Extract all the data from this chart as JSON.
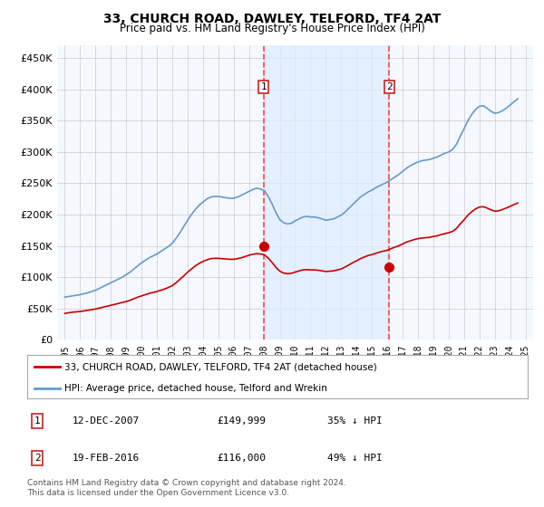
{
  "title": "33, CHURCH ROAD, DAWLEY, TELFORD, TF4 2AT",
  "subtitle": "Price paid vs. HM Land Registry's House Price Index (HPI)",
  "xlabel": "",
  "ylabel": "",
  "ylim": [
    0,
    470000
  ],
  "yticks": [
    0,
    50000,
    100000,
    150000,
    200000,
    250000,
    300000,
    350000,
    400000,
    450000
  ],
  "ytick_labels": [
    "£0",
    "£50K",
    "£100K",
    "£150K",
    "£200K",
    "£250K",
    "£300K",
    "£350K",
    "£400K",
    "£450K"
  ],
  "xlim_start": 1994.5,
  "xlim_end": 2025.5,
  "xticks": [
    1995,
    1996,
    1997,
    1998,
    1999,
    2000,
    2001,
    2002,
    2003,
    2004,
    2005,
    2006,
    2007,
    2008,
    2009,
    2010,
    2011,
    2012,
    2013,
    2014,
    2015,
    2016,
    2017,
    2018,
    2019,
    2020,
    2021,
    2022,
    2023,
    2024,
    2025
  ],
  "background_color": "#ffffff",
  "plot_bg_color": "#f5f8ff",
  "grid_color": "#cccccc",
  "hpi_color": "#6699cc",
  "price_color": "#cc0000",
  "shade_color": "#ddeeff",
  "marker_color": "#cc0000",
  "sale1_x": 2007.95,
  "sale1_y": 149999,
  "sale1_label": "1",
  "sale2_x": 2016.13,
  "sale2_y": 116000,
  "sale2_label": "2",
  "vline_color": "#ff4444",
  "vline_style": "--",
  "legend_line1": "33, CHURCH ROAD, DAWLEY, TELFORD, TF4 2AT (detached house)",
  "legend_line2": "HPI: Average price, detached house, Telford and Wrekin",
  "annotation1_date": "12-DEC-2007",
  "annotation1_price": "£149,999",
  "annotation1_hpi": "35% ↓ HPI",
  "annotation2_date": "19-FEB-2016",
  "annotation2_price": "£116,000",
  "annotation2_hpi": "49% ↓ HPI",
  "footer": "Contains HM Land Registry data © Crown copyright and database right 2024.\nThis data is licensed under the Open Government Licence v3.0.",
  "hpi_data_x": [
    1995.0,
    1995.25,
    1995.5,
    1995.75,
    1996.0,
    1996.25,
    1996.5,
    1996.75,
    1997.0,
    1997.25,
    1997.5,
    1997.75,
    1998.0,
    1998.25,
    1998.5,
    1998.75,
    1999.0,
    1999.25,
    1999.5,
    1999.75,
    2000.0,
    2000.25,
    2000.5,
    2000.75,
    2001.0,
    2001.25,
    2001.5,
    2001.75,
    2002.0,
    2002.25,
    2002.5,
    2002.75,
    2003.0,
    2003.25,
    2003.5,
    2003.75,
    2004.0,
    2004.25,
    2004.5,
    2004.75,
    2005.0,
    2005.25,
    2005.5,
    2005.75,
    2006.0,
    2006.25,
    2006.5,
    2006.75,
    2007.0,
    2007.25,
    2007.5,
    2007.75,
    2008.0,
    2008.25,
    2008.5,
    2008.75,
    2009.0,
    2009.25,
    2009.5,
    2009.75,
    2010.0,
    2010.25,
    2010.5,
    2010.75,
    2011.0,
    2011.25,
    2011.5,
    2011.75,
    2012.0,
    2012.25,
    2012.5,
    2012.75,
    2013.0,
    2013.25,
    2013.5,
    2013.75,
    2014.0,
    2014.25,
    2014.5,
    2014.75,
    2015.0,
    2015.25,
    2015.5,
    2015.75,
    2016.0,
    2016.25,
    2016.5,
    2016.75,
    2017.0,
    2017.25,
    2017.5,
    2017.75,
    2018.0,
    2018.25,
    2018.5,
    2018.75,
    2019.0,
    2019.25,
    2019.5,
    2019.75,
    2020.0,
    2020.25,
    2020.5,
    2020.75,
    2021.0,
    2021.25,
    2021.5,
    2021.75,
    2022.0,
    2022.25,
    2022.5,
    2022.75,
    2023.0,
    2023.25,
    2023.5,
    2023.75,
    2024.0,
    2024.25,
    2024.5
  ],
  "hpi_data_y": [
    68000,
    69000,
    70000,
    71000,
    72000,
    73500,
    75000,
    77000,
    79000,
    82000,
    85000,
    88000,
    91000,
    94000,
    97000,
    100000,
    104000,
    108000,
    113000,
    118000,
    123000,
    127000,
    131000,
    134000,
    137000,
    141000,
    145000,
    149000,
    154000,
    162000,
    171000,
    181000,
    191000,
    200000,
    208000,
    215000,
    220000,
    225000,
    228000,
    229000,
    229000,
    228000,
    227000,
    226000,
    226000,
    228000,
    231000,
    234000,
    237000,
    240000,
    242000,
    241000,
    238000,
    229000,
    217000,
    203000,
    192000,
    187000,
    185000,
    186000,
    190000,
    193000,
    196000,
    197000,
    196000,
    196000,
    195000,
    193000,
    191000,
    192000,
    193000,
    196000,
    199000,
    204000,
    210000,
    216000,
    222000,
    228000,
    232000,
    236000,
    239000,
    243000,
    246000,
    249000,
    252000,
    256000,
    260000,
    264000,
    269000,
    274000,
    278000,
    281000,
    284000,
    286000,
    287000,
    288000,
    290000,
    292000,
    295000,
    298000,
    300000,
    304000,
    312000,
    325000,
    337000,
    350000,
    360000,
    368000,
    373000,
    374000,
    370000,
    365000,
    362000,
    363000,
    366000,
    370000,
    375000,
    380000,
    385000
  ],
  "price_data_x": [
    1995.0,
    1995.25,
    1995.5,
    1995.75,
    1996.0,
    1996.25,
    1996.5,
    1996.75,
    1997.0,
    1997.25,
    1997.5,
    1997.75,
    1998.0,
    1998.25,
    1998.5,
    1998.75,
    1999.0,
    1999.25,
    1999.5,
    1999.75,
    2000.0,
    2000.25,
    2000.5,
    2000.75,
    2001.0,
    2001.25,
    2001.5,
    2001.75,
    2002.0,
    2002.25,
    2002.5,
    2002.75,
    2003.0,
    2003.25,
    2003.5,
    2003.75,
    2004.0,
    2004.25,
    2004.5,
    2004.75,
    2005.0,
    2005.25,
    2005.5,
    2005.75,
    2006.0,
    2006.25,
    2006.5,
    2006.75,
    2007.0,
    2007.25,
    2007.5,
    2007.75,
    2008.0,
    2008.25,
    2008.5,
    2008.75,
    2009.0,
    2009.25,
    2009.5,
    2009.75,
    2010.0,
    2010.25,
    2010.5,
    2010.75,
    2011.0,
    2011.25,
    2011.5,
    2011.75,
    2012.0,
    2012.25,
    2012.5,
    2012.75,
    2013.0,
    2013.25,
    2013.5,
    2013.75,
    2014.0,
    2014.25,
    2014.5,
    2014.75,
    2015.0,
    2015.25,
    2015.5,
    2015.75,
    2016.0,
    2016.25,
    2016.5,
    2016.75,
    2017.0,
    2017.25,
    2017.5,
    2017.75,
    2018.0,
    2018.25,
    2018.5,
    2018.75,
    2019.0,
    2019.25,
    2019.5,
    2019.75,
    2020.0,
    2020.25,
    2020.5,
    2020.75,
    2021.0,
    2021.25,
    2021.5,
    2021.75,
    2022.0,
    2022.25,
    2022.5,
    2022.75,
    2023.0,
    2023.25,
    2023.5,
    2023.75,
    2024.0,
    2024.25,
    2024.5
  ],
  "price_data_y": [
    42000,
    43000,
    44000,
    44500,
    45000,
    46000,
    47000,
    48000,
    49000,
    50500,
    52000,
    53500,
    55000,
    56500,
    58000,
    59500,
    61000,
    63000,
    65500,
    68000,
    70000,
    72000,
    74000,
    75500,
    77000,
    79000,
    81000,
    83500,
    86500,
    91000,
    96500,
    102000,
    108000,
    113000,
    118000,
    122000,
    125000,
    127500,
    129500,
    130000,
    130000,
    129500,
    129000,
    128500,
    128500,
    129500,
    131000,
    133000,
    135000,
    136500,
    137500,
    137000,
    135500,
    130500,
    123500,
    115500,
    109500,
    106500,
    105500,
    106000,
    108000,
    110000,
    111500,
    112000,
    111500,
    111500,
    111000,
    110000,
    109000,
    109500,
    110000,
    111500,
    113000,
    116000,
    119500,
    123000,
    126000,
    129500,
    132000,
    134500,
    136000,
    138000,
    140000,
    141500,
    143000,
    145500,
    148000,
    150000,
    153000,
    156000,
    158000,
    160000,
    161500,
    162500,
    163000,
    163500,
    165000,
    166000,
    168000,
    169500,
    171000,
    173000,
    177500,
    185000,
    191500,
    199000,
    204500,
    209000,
    212000,
    212500,
    210500,
    207500,
    205500,
    206000,
    208000,
    210500,
    213000,
    216000,
    218500
  ]
}
